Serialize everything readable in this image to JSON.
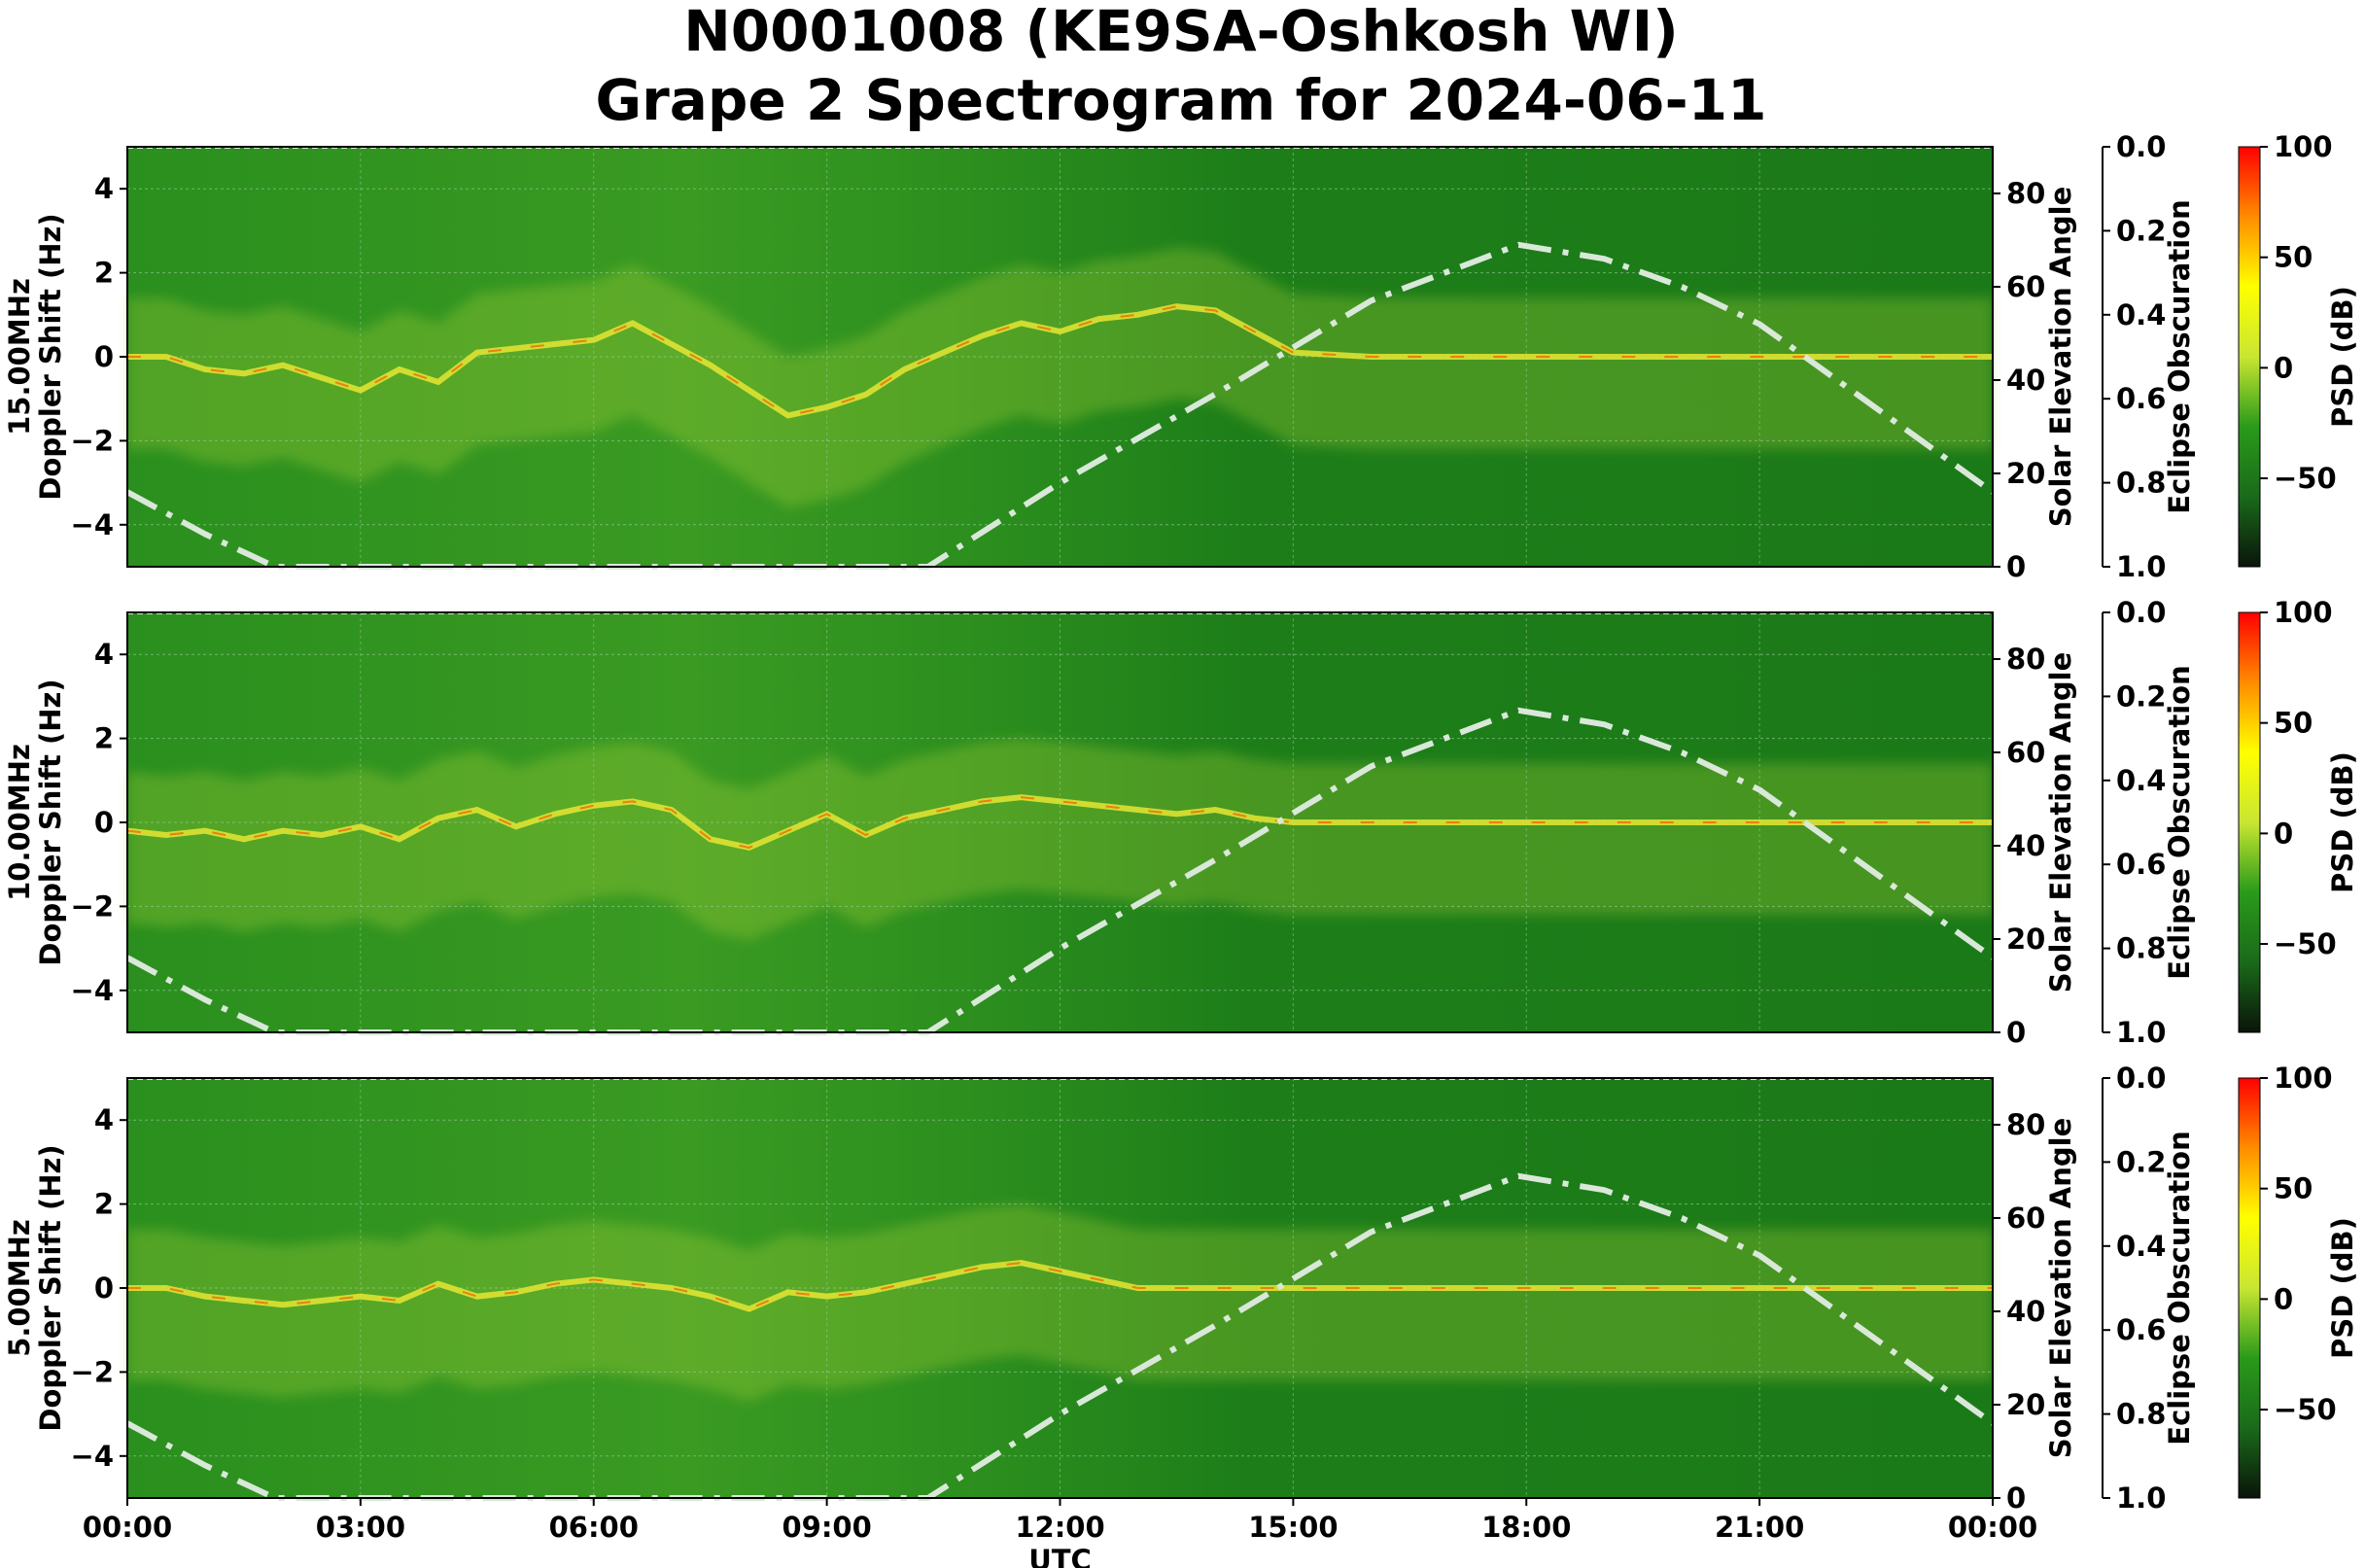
{
  "title_line1": "N0001008 (KE9SA-Oshkosh WI)",
  "title_line2": "Grape 2 Spectrogram for 2024-06-11",
  "colors": {
    "background_green": "#1f8a1f",
    "carrier_yellow": "#e6e632",
    "hot_red": "#ff3300",
    "solar_curve": "#d9e8d9",
    "colorbar_stops": [
      "#0a140a",
      "#1a6a1a",
      "#2a9a1a",
      "#c8e632",
      "#ffff00",
      "#ff8c00",
      "#ff0000"
    ]
  },
  "chart_data": [
    {
      "type": "heatmap",
      "panel": "15.00MHz",
      "ylabel_line1": "15.00MHz",
      "ylabel_line2": "Doppler Shift (Hz)",
      "ylim": [
        -5,
        5
      ],
      "yticks": [
        "4",
        "2",
        "0",
        "−2",
        "−4"
      ],
      "right_ylabel": "Solar Elevation Angle",
      "right_ylim": [
        0,
        90
      ],
      "right_yticks": [
        "80",
        "60",
        "40",
        "20",
        "0"
      ],
      "eclipse_label": "Eclipse Obscuration",
      "eclipse_ticks": [
        "0.0",
        "0.2",
        "0.4",
        "0.6",
        "0.8",
        "1.0"
      ],
      "colorbar_label": "PSD (dB)",
      "colorbar_ticks": [
        "100",
        "50",
        "0",
        "−50"
      ],
      "carrier": {
        "x_hours": [
          0,
          0.5,
          1,
          1.5,
          2,
          2.5,
          3,
          3.5,
          4,
          4.5,
          5,
          5.5,
          6,
          6.5,
          7,
          7.5,
          8,
          8.5,
          9,
          9.5,
          10,
          10.5,
          11,
          11.5,
          12,
          12.5,
          13,
          13.5,
          14,
          14.5,
          15,
          16,
          17,
          18,
          19,
          20,
          21,
          22,
          23,
          24
        ],
        "y_hz": [
          0,
          0,
          -0.3,
          -0.4,
          -0.2,
          -0.5,
          -0.8,
          -0.3,
          -0.6,
          0.1,
          0.2,
          0.3,
          0.4,
          0.8,
          0.3,
          -0.2,
          -0.8,
          -1.4,
          -1.2,
          -0.9,
          -0.3,
          0.1,
          0.5,
          0.8,
          0.6,
          0.9,
          1.0,
          1.2,
          1.1,
          0.6,
          0.1,
          0.0,
          0.0,
          0.0,
          0.0,
          0.0,
          0.0,
          0.0,
          0.0,
          0.0
        ]
      },
      "solar_elevation": {
        "x_hours": [
          0,
          1,
          1.9,
          10.3,
          12,
          14,
          16,
          17.9,
          19,
          20,
          21,
          22,
          23,
          24
        ],
        "deg": [
          16,
          7,
          0,
          0,
          18,
          37,
          57,
          69,
          66,
          60,
          52,
          40,
          28,
          16
        ]
      }
    },
    {
      "type": "heatmap",
      "panel": "10.00MHz",
      "ylabel_line1": "10.00MHz",
      "ylabel_line2": "Doppler Shift (Hz)",
      "ylim": [
        -5,
        5
      ],
      "yticks": [
        "4",
        "2",
        "0",
        "−2",
        "−4"
      ],
      "right_ylabel": "Solar Elevation Angle",
      "right_ylim": [
        0,
        90
      ],
      "right_yticks": [
        "80",
        "60",
        "40",
        "20",
        "0"
      ],
      "eclipse_label": "Eclipse Obscuration",
      "eclipse_ticks": [
        "0.0",
        "0.2",
        "0.4",
        "0.6",
        "0.8",
        "1.0"
      ],
      "colorbar_label": "PSD (dB)",
      "colorbar_ticks": [
        "100",
        "50",
        "0",
        "−50"
      ],
      "carrier": {
        "x_hours": [
          0,
          0.5,
          1,
          1.5,
          2,
          2.5,
          3,
          3.5,
          4,
          4.5,
          5,
          5.5,
          6,
          6.5,
          7,
          7.5,
          8,
          8.5,
          9,
          9.5,
          10,
          10.5,
          11,
          11.5,
          12,
          12.5,
          13,
          13.5,
          14,
          14.5,
          15,
          16,
          17,
          18,
          19,
          20,
          21,
          22,
          23,
          24
        ],
        "y_hz": [
          -0.2,
          -0.3,
          -0.2,
          -0.4,
          -0.2,
          -0.3,
          -0.1,
          -0.4,
          0.1,
          0.3,
          -0.1,
          0.2,
          0.4,
          0.5,
          0.3,
          -0.4,
          -0.6,
          -0.2,
          0.2,
          -0.3,
          0.1,
          0.3,
          0.5,
          0.6,
          0.5,
          0.4,
          0.3,
          0.2,
          0.3,
          0.1,
          0.0,
          0.0,
          0.0,
          0.0,
          0.0,
          0.0,
          0.0,
          0.0,
          0.0,
          0.0
        ]
      },
      "solar_elevation": {
        "x_hours": [
          0,
          1,
          1.9,
          10.3,
          12,
          14,
          16,
          17.9,
          19,
          20,
          21,
          22,
          23,
          24
        ],
        "deg": [
          16,
          7,
          0,
          0,
          18,
          37,
          57,
          69,
          66,
          60,
          52,
          40,
          28,
          16
        ]
      }
    },
    {
      "type": "heatmap",
      "panel": "5.00MHz",
      "ylabel_line1": "5.00MHz",
      "ylabel_line2": "Doppler Shift (Hz)",
      "ylim": [
        -5,
        5
      ],
      "yticks": [
        "4",
        "2",
        "0",
        "−2",
        "−4"
      ],
      "right_ylabel": "Solar Elevation Angle",
      "right_ylim": [
        0,
        90
      ],
      "right_yticks": [
        "80",
        "60",
        "40",
        "20",
        "0"
      ],
      "eclipse_label": "Eclipse Obscuration",
      "eclipse_ticks": [
        "0.0",
        "0.2",
        "0.4",
        "0.6",
        "0.8",
        "1.0"
      ],
      "colorbar_label": "PSD (dB)",
      "colorbar_ticks": [
        "100",
        "50",
        "0",
        "−50"
      ],
      "xlabel": "UTC",
      "xticks": [
        "00:00",
        "03:00",
        "06:00",
        "09:00",
        "12:00",
        "15:00",
        "18:00",
        "21:00",
        "00:00"
      ],
      "carrier": {
        "x_hours": [
          0,
          0.5,
          1,
          1.5,
          2,
          2.5,
          3,
          3.5,
          4,
          4.5,
          5,
          5.5,
          6,
          6.5,
          7,
          7.5,
          8,
          8.5,
          9,
          9.5,
          10,
          10.5,
          11,
          11.5,
          12,
          12.5,
          13,
          14,
          15,
          16,
          17,
          18,
          19,
          20,
          21,
          22,
          23,
          24
        ],
        "y_hz": [
          0,
          0,
          -0.2,
          -0.3,
          -0.4,
          -0.3,
          -0.2,
          -0.3,
          0.1,
          -0.2,
          -0.1,
          0.1,
          0.2,
          0.1,
          0.0,
          -0.2,
          -0.5,
          -0.1,
          -0.2,
          -0.1,
          0.1,
          0.3,
          0.5,
          0.6,
          0.4,
          0.2,
          0.0,
          0.0,
          0.0,
          0.0,
          0.0,
          0.0,
          0.0,
          0.0,
          0.0,
          0.0,
          0.0,
          0.0
        ]
      },
      "solar_elevation": {
        "x_hours": [
          0,
          1,
          1.9,
          10.3,
          12,
          14,
          16,
          17.9,
          19,
          20,
          21,
          22,
          23,
          24
        ],
        "deg": [
          16,
          7,
          0,
          0,
          18,
          37,
          57,
          69,
          66,
          60,
          52,
          40,
          28,
          16
        ]
      }
    }
  ]
}
